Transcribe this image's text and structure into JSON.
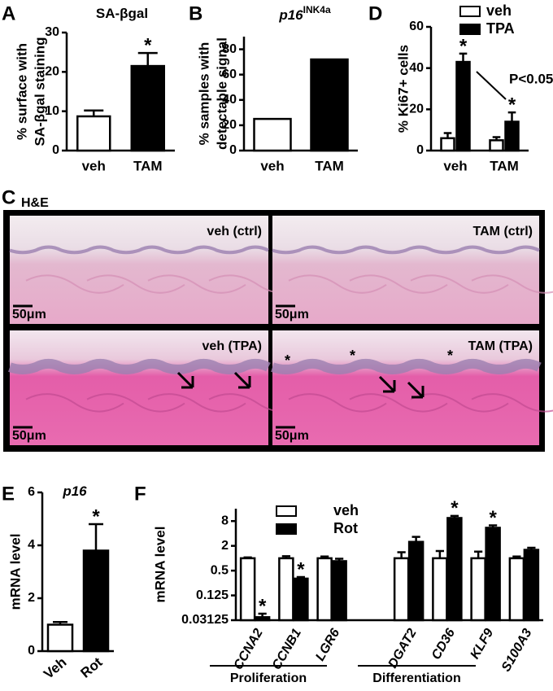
{
  "chart_data": [
    {
      "type": "bar",
      "panel": "A",
      "title": "SA-βgal",
      "ylabel": [
        "% surface with",
        "SA-βgal staining"
      ],
      "categories": [
        "veh",
        "TAM"
      ],
      "values": [
        8.7,
        21.5
      ],
      "errors": [
        1.5,
        3.3
      ],
      "significance": [
        null,
        "*"
      ],
      "colors": [
        "#ffffff",
        "#000000"
      ],
      "ylim": [
        0,
        30
      ],
      "yticks": [
        0,
        10,
        20,
        30
      ]
    },
    {
      "type": "bar",
      "panel": "B",
      "title": "p16",
      "title_superscript": "INK4a",
      "ylabel": [
        "% samples with",
        "detectable signal"
      ],
      "categories": [
        "veh",
        "TAM"
      ],
      "values": [
        25,
        72
      ],
      "colors": [
        "#ffffff",
        "#000000"
      ],
      "ylim": [
        0,
        90
      ],
      "yticks": [
        0,
        20,
        40,
        60,
        80
      ]
    },
    {
      "type": "bar",
      "panel": "D",
      "ylabel": [
        "% Ki67+ cells"
      ],
      "categories": [
        "veh",
        "TAM"
      ],
      "series": [
        {
          "name": "veh",
          "color": "#ffffff",
          "values": [
            6,
            5
          ],
          "errors": [
            2.5,
            1.5
          ],
          "significance": [
            null,
            null
          ]
        },
        {
          "name": "TPA",
          "color": "#000000",
          "values": [
            43,
            14
          ],
          "errors": [
            4,
            4.5
          ],
          "significance": [
            "*",
            "*"
          ]
        }
      ],
      "annotation": "P<0.05",
      "ylim": [
        0,
        60
      ],
      "yticks": [
        0,
        20,
        40,
        60
      ],
      "legend": "top-right"
    },
    {
      "type": "bar",
      "panel": "E",
      "title": "p16",
      "ylabel": [
        "mRNA level"
      ],
      "categories": [
        "Veh",
        "Rot"
      ],
      "values": [
        1.0,
        3.8
      ],
      "errors": [
        0.1,
        1.0
      ],
      "significance": [
        null,
        "*"
      ],
      "colors": [
        "#ffffff",
        "#000000"
      ],
      "ylim": [
        0,
        6
      ],
      "yticks": [
        0,
        2,
        4,
        6
      ]
    },
    {
      "type": "bar",
      "panel": "F",
      "ylabel": [
        "mRNA level"
      ],
      "categories": [
        "CCNA2",
        "CCNB1",
        "LGR6",
        null,
        "DGAT2",
        "CD36",
        "KLF9",
        "S100A3"
      ],
      "series": [
        {
          "name": "veh",
          "color": "#ffffff",
          "values": [
            1,
            1,
            1,
            null,
            1,
            1,
            1,
            1
          ],
          "errors": [
            0.05,
            0.12,
            0.1,
            null,
            0.4,
            0.5,
            0.45,
            0.1
          ],
          "significance": [
            null,
            null,
            null,
            null,
            null,
            null,
            null,
            null
          ]
        },
        {
          "name": "Rot",
          "color": "#000000",
          "values": [
            0.037,
            0.32,
            0.85,
            null,
            2.5,
            9.5,
            5.5,
            1.6
          ],
          "errors": [
            0.008,
            0.03,
            0.12,
            null,
            0.8,
            1.2,
            0.8,
            0.2
          ],
          "significance": [
            "*",
            "*",
            null,
            null,
            null,
            "*",
            "*",
            null
          ]
        }
      ],
      "y_scale": "log",
      "log_base": 2,
      "ylim": [
        0.03125,
        16
      ],
      "yticks": [
        0.03125,
        0.125,
        0.5,
        2,
        8
      ],
      "legend": "top-left",
      "group_labels": [
        "Proliferation",
        "Differentiation"
      ]
    }
  ],
  "histology": {
    "panel": "C",
    "stain": "H&E",
    "images": [
      {
        "label": "veh (ctrl)",
        "scale_bar": "50μm"
      },
      {
        "label": "TAM (ctrl)",
        "scale_bar": "50μm"
      },
      {
        "label": "veh (TPA)",
        "scale_bar": "50μm"
      },
      {
        "label": "TAM (TPA)",
        "scale_bar": "50μm",
        "markers": [
          "*",
          "*",
          "*"
        ]
      }
    ]
  }
}
